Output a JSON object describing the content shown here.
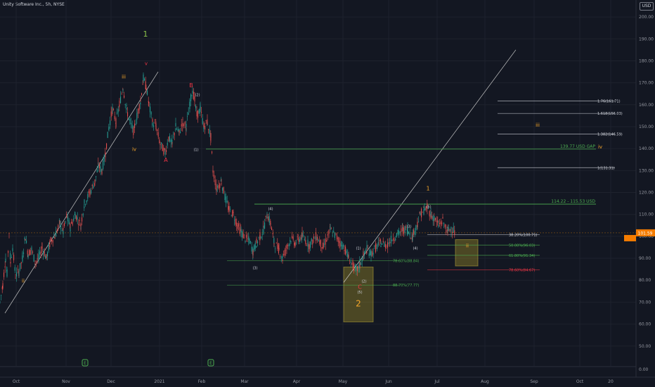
{
  "header": {
    "title": "Unity Software Inc., 5h, NYSE",
    "currency": "USD"
  },
  "price_tag": "101.59",
  "theme": {
    "background": "#131722",
    "grid": "#1e222d",
    "up": "#26a69a",
    "down": "#ef5350",
    "gold": "#f4a62a",
    "green": "#4caf50",
    "red": "#f23645",
    "white": "#d1d4dc",
    "axis_text": "#9598a1",
    "wave_green": "#8bc34a"
  },
  "chart_data": {
    "type": "candlestick",
    "title": "Unity Software Inc., 5h, NYSE",
    "x_labels": [
      "Oct",
      "Nov",
      "Dec",
      "2021",
      "Feb",
      "Mar",
      "Apr",
      "May",
      "Jun",
      "Jul",
      "Aug",
      "Sep",
      "Oct",
      "20"
    ],
    "y_ticks": [
      200,
      190,
      180,
      170,
      160,
      150,
      140,
      130,
      120,
      110,
      100,
      90,
      80,
      70,
      60,
      50
    ],
    "y_range": [
      46,
      204
    ],
    "price_path": [
      [
        0,
        70
      ],
      [
        4,
        78
      ],
      [
        8,
        90
      ],
      [
        10,
        83
      ],
      [
        13,
        102
      ],
      [
        15,
        88
      ],
      [
        18,
        95
      ],
      [
        22,
        82
      ],
      [
        27,
        84
      ],
      [
        32,
        90
      ],
      [
        36,
        100
      ],
      [
        40,
        92
      ],
      [
        45,
        94
      ],
      [
        50,
        88
      ],
      [
        55,
        90
      ],
      [
        60,
        95
      ],
      [
        66,
        90
      ],
      [
        72,
        98
      ],
      [
        78,
        100
      ],
      [
        85,
        106
      ],
      [
        90,
        102
      ],
      [
        95,
        109
      ],
      [
        100,
        104
      ],
      [
        107,
        110
      ],
      [
        115,
        105
      ],
      [
        120,
        115
      ],
      [
        128,
        120
      ],
      [
        135,
        125
      ],
      [
        140,
        132
      ],
      [
        145,
        130
      ],
      [
        150,
        138
      ],
      [
        155,
        150
      ],
      [
        160,
        158
      ],
      [
        165,
        152
      ],
      [
        170,
        160
      ],
      [
        175,
        168
      ],
      [
        180,
        158
      ],
      [
        185,
        152
      ],
      [
        190,
        148
      ],
      [
        195,
        155
      ],
      [
        200,
        162
      ],
      [
        204,
        172
      ],
      [
        208,
        168
      ],
      [
        212,
        160
      ],
      [
        217,
        152
      ],
      [
        222,
        150
      ],
      [
        228,
        142
      ],
      [
        235,
        138
      ],
      [
        240,
        145
      ],
      [
        245,
        142
      ],
      [
        250,
        150
      ],
      [
        255,
        147
      ],
      [
        260,
        152
      ],
      [
        265,
        150
      ],
      [
        270,
        160
      ],
      [
        274,
        167
      ],
      [
        277,
        162
      ],
      [
        280,
        155
      ],
      [
        285,
        158
      ],
      [
        290,
        150
      ],
      [
        295,
        152
      ],
      [
        300,
        145
      ],
      [
        303,
        130
      ],
      [
        308,
        122
      ],
      [
        315,
        125
      ],
      [
        320,
        118
      ],
      [
        326,
        112
      ],
      [
        332,
        110
      ],
      [
        338,
        105
      ],
      [
        343,
        102
      ],
      [
        349,
        99
      ],
      [
        355,
        98
      ],
      [
        360,
        93
      ],
      [
        365,
        97
      ],
      [
        370,
        100
      ],
      [
        375,
        103
      ],
      [
        380,
        110
      ],
      [
        385,
        106
      ],
      [
        390,
        97
      ],
      [
        397,
        94
      ],
      [
        402,
        90
      ],
      [
        408,
        95
      ],
      [
        414,
        99
      ],
      [
        420,
        97
      ],
      [
        430,
        100
      ],
      [
        440,
        96
      ],
      [
        450,
        100
      ],
      [
        460,
        95
      ],
      [
        470,
        103
      ],
      [
        478,
        100
      ],
      [
        484,
        97
      ],
      [
        490,
        95
      ],
      [
        496,
        90
      ],
      [
        502,
        87
      ],
      [
        507,
        84
      ],
      [
        512,
        87
      ],
      [
        517,
        91
      ],
      [
        522,
        94
      ],
      [
        528,
        92
      ],
      [
        535,
        95
      ],
      [
        542,
        97
      ],
      [
        550,
        96
      ],
      [
        558,
        99
      ],
      [
        566,
        101
      ],
      [
        573,
        103
      ],
      [
        580,
        103
      ],
      [
        587,
        100
      ],
      [
        594,
        106
      ],
      [
        598,
        110
      ],
      [
        603,
        112
      ],
      [
        608,
        113
      ],
      [
        613,
        110
      ],
      [
        618,
        108
      ],
      [
        624,
        105
      ],
      [
        630,
        107
      ],
      [
        637,
        102
      ],
      [
        642,
        104
      ],
      [
        647,
        102
      ]
    ],
    "wave_labels": [
      {
        "text": "1",
        "color": "wave_green",
        "price": 191,
        "x": 207,
        "size": 11
      },
      {
        "text": "iii",
        "color": "gold",
        "price": 172,
        "x": 176,
        "size": 7
      },
      {
        "text": "v",
        "color": "red",
        "price": 178,
        "x": 208,
        "size": 7
      },
      {
        "text": "B",
        "color": "red",
        "price": 168,
        "x": 272,
        "size": 8
      },
      {
        "text": "(2)",
        "color": "white",
        "price": 164,
        "x": 281,
        "size": 5
      },
      {
        "text": "iv",
        "color": "gold",
        "price": 139,
        "x": 191,
        "size": 7
      },
      {
        "text": "A",
        "color": "red",
        "price": 134,
        "x": 236,
        "size": 8
      },
      {
        "text": "(1)",
        "color": "white",
        "price": 139,
        "x": 279,
        "size": 5
      },
      {
        "text": "ii",
        "color": "gold",
        "price": 79,
        "x": 33,
        "size": 7
      },
      {
        "text": "1",
        "color": "gold",
        "price": 121,
        "x": 609,
        "size": 8
      },
      {
        "text": "(4)",
        "color": "white",
        "price": 112,
        "x": 385,
        "size": 5
      },
      {
        "text": "(3)",
        "color": "white",
        "price": 85,
        "x": 363,
        "size": 5
      },
      {
        "text": "(1)",
        "color": "white",
        "price": 94,
        "x": 510,
        "size": 5
      },
      {
        "text": "(2)",
        "color": "white",
        "price": 79,
        "x": 518,
        "size": 5
      },
      {
        "text": "(5)",
        "color": "white",
        "price": 74,
        "x": 512,
        "size": 5
      },
      {
        "text": "C",
        "color": "red",
        "price": 76,
        "x": 512,
        "size": 8
      },
      {
        "text": "(3)",
        "color": "white",
        "price": 104,
        "x": 582,
        "size": 5
      },
      {
        "text": "(4)",
        "color": "white",
        "price": 94,
        "x": 591,
        "size": 5
      },
      {
        "text": "(5)",
        "color": "white",
        "price": 113,
        "x": 610,
        "size": 5
      },
      {
        "text": "2",
        "color": "gold",
        "price": 68,
        "x": 510,
        "size": 12
      },
      {
        "text": "ii",
        "color": "gold",
        "price": 95,
        "x": 665,
        "size": 7
      },
      {
        "text": "iii",
        "color": "gold",
        "price": 150,
        "x": 765,
        "size": 7
      },
      {
        "text": "iv",
        "color": "gold",
        "price": 140,
        "x": 854,
        "size": 7
      }
    ],
    "levels": [
      {
        "label": "1.76(161.71)",
        "price": 161.71,
        "x1": 708,
        "x2": 875,
        "color": "white"
      },
      {
        "label": "1.618(156.03)",
        "price": 156.03,
        "x1": 708,
        "x2": 875,
        "color": "white"
      },
      {
        "label": "1.382(146.59)",
        "price": 146.59,
        "x1": 708,
        "x2": 875,
        "color": "white"
      },
      {
        "label": "1(131.31)",
        "price": 131.31,
        "x1": 708,
        "x2": 875,
        "color": "white"
      },
      {
        "label": "38.20%(100.71)",
        "price": 100.71,
        "x1": 608,
        "x2": 768,
        "color": "white"
      },
      {
        "label": "50.00%(96.03)",
        "price": 96.03,
        "x1": 608,
        "x2": 768,
        "color": "green"
      },
      {
        "label": "61.80%(91.34)",
        "price": 91.34,
        "x1": 608,
        "x2": 768,
        "color": "green"
      },
      {
        "label": "78.60%(84.67)",
        "price": 84.67,
        "x1": 608,
        "x2": 768,
        "color": "red"
      },
      {
        "label": "78.60%(88.84)",
        "price": 88.84,
        "x1": 323,
        "x2": 568,
        "color": "green"
      },
      {
        "label": "88.70%(77.77)",
        "price": 77.77,
        "x1": 323,
        "x2": 568,
        "color": "green"
      }
    ],
    "gaps": [
      {
        "label": "139.77 USD GAP",
        "price": 139.77,
        "x1": 293,
        "x2": 848
      },
      {
        "label": "114.22 - 115.53 USD",
        "price": 114.7,
        "x1": 362,
        "x2": 848
      }
    ],
    "boxes": [
      {
        "name": "wave-2-target-zone",
        "x1": 489,
        "x2": 531,
        "p_top": 86,
        "p_bottom": 61
      },
      {
        "name": "wave-ii-target-zone",
        "x1": 648,
        "x2": 680,
        "p_top": 98.5,
        "p_bottom": 86.5
      }
    ],
    "trendlines": [
      {
        "name": "wave-1-trendline",
        "x1": 7,
        "p1": 65,
        "x2": 225,
        "p2": 175
      },
      {
        "name": "wave-3-trendline",
        "x1": 489,
        "p1": 79,
        "x2": 734,
        "p2": 185
      }
    ],
    "earnings_markers": [
      {
        "x": 121,
        "label": "E"
      },
      {
        "x": 300,
        "label": "E"
      }
    ]
  }
}
